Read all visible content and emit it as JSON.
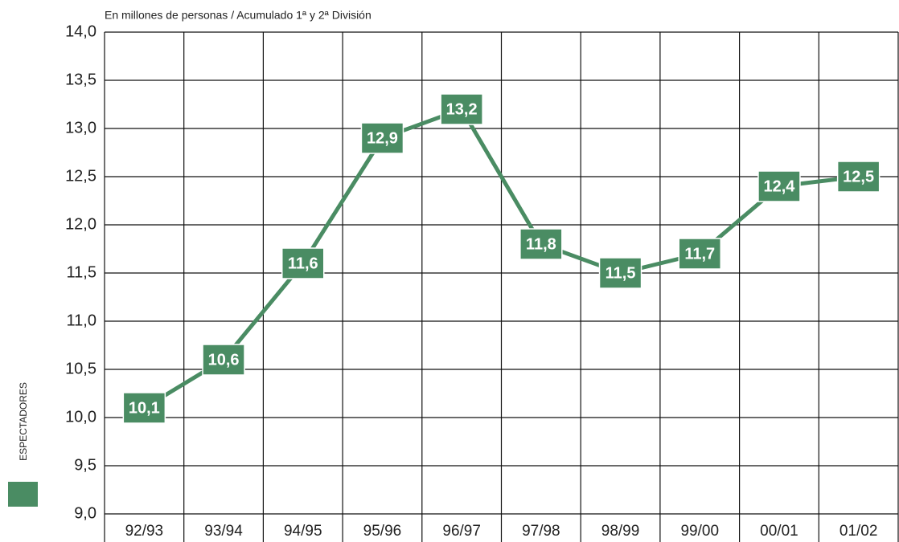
{
  "chart_data": {
    "type": "line",
    "subtitle": "En millones de personas / Acumulado 1ª y 2ª División",
    "categories": [
      "92/93",
      "93/94",
      "94/95",
      "95/96",
      "96/97",
      "97/98",
      "98/99",
      "99/00",
      "00/01",
      "01/02"
    ],
    "series": [
      {
        "name": "ESPECTADORES",
        "color": "#4a8c63",
        "values": [
          10.1,
          10.6,
          11.6,
          12.9,
          13.2,
          11.8,
          11.5,
          11.7,
          12.4,
          12.5
        ],
        "value_labels": [
          "10,1",
          "10,6",
          "11,6",
          "12,9",
          "13,2",
          "11,8",
          "11,5",
          "11,7",
          "12,4",
          "12,5"
        ]
      }
    ],
    "ylim": [
      9,
      14
    ],
    "yticks": [
      {
        "value": 9,
        "label": "9,0"
      },
      {
        "value": 9.5,
        "label": "9,5"
      },
      {
        "value": 10,
        "label": "10,0"
      },
      {
        "value": 10.5,
        "label": "10,5"
      },
      {
        "value": 11,
        "label": "11,0"
      },
      {
        "value": 11.5,
        "label": "11,5"
      },
      {
        "value": 12,
        "label": "12,0"
      },
      {
        "value": 12.5,
        "label": "12,5"
      },
      {
        "value": 13,
        "label": "13,0"
      },
      {
        "value": 13.5,
        "label": "13,5"
      },
      {
        "value": 14,
        "label": "14,0"
      }
    ],
    "grid": true,
    "legend": "bottom-left"
  }
}
